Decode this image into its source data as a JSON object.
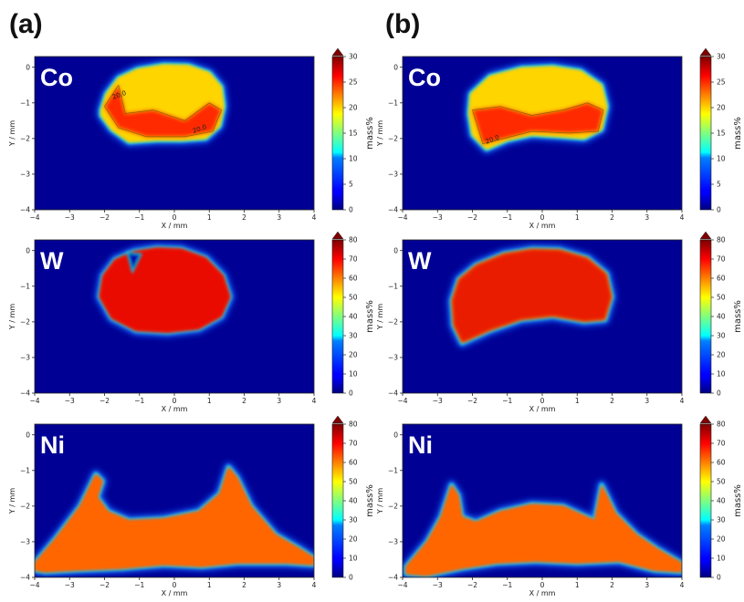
{
  "panels": [
    {
      "label": "(a)"
    },
    {
      "label": "(b)"
    }
  ],
  "chart_data": [
    {
      "type": "heatmap",
      "panel": "(a)",
      "element": "Co",
      "title": "",
      "xlabel": "X / mm",
      "ylabel": "Y / mm",
      "xlim": [
        -4,
        4
      ],
      "ylim": [
        -4,
        0.3
      ],
      "xticks": [
        "−4",
        "−3",
        "−2",
        "−1",
        "0",
        "1",
        "2",
        "3",
        "4"
      ],
      "yticks": [
        "0",
        "−1",
        "−2",
        "−3",
        "−4"
      ],
      "colorbar": {
        "label": "mass%",
        "range": [
          0,
          30
        ],
        "ticks": [
          "0",
          "5",
          "10",
          "15",
          "20",
          "25",
          "30"
        ]
      },
      "contour_labels": [
        "20.0",
        "20.0"
      ],
      "outline": [
        [
          -2.1,
          -1.2
        ],
        [
          -1.95,
          -0.75
        ],
        [
          -1.6,
          -0.3
        ],
        [
          -1.05,
          -0.05
        ],
        [
          -0.3,
          0.07
        ],
        [
          0.4,
          0.05
        ],
        [
          1.0,
          -0.15
        ],
        [
          1.35,
          -0.55
        ],
        [
          1.42,
          -1.1
        ],
        [
          1.3,
          -1.65
        ],
        [
          0.9,
          -2.0
        ],
        [
          0.2,
          -2.05
        ],
        [
          -0.5,
          -2.05
        ],
        [
          -1.3,
          -2.1
        ],
        [
          -1.8,
          -1.75
        ],
        [
          -2.1,
          -1.35
        ]
      ],
      "hot_region": [
        [
          -2.0,
          -1.1
        ],
        [
          -1.6,
          -0.5
        ],
        [
          -1.4,
          -1.3
        ],
        [
          -0.6,
          -1.2
        ],
        [
          0.3,
          -1.5
        ],
        [
          1.0,
          -1.0
        ],
        [
          1.35,
          -1.2
        ],
        [
          1.1,
          -1.8
        ],
        [
          0.3,
          -1.95
        ],
        [
          -0.8,
          -1.95
        ],
        [
          -1.6,
          -1.7
        ]
      ],
      "values": {
        "core": 20,
        "hot": 25,
        "background": 0
      }
    },
    {
      "type": "heatmap",
      "panel": "(b)",
      "element": "Co",
      "title": "",
      "xlabel": "X / mm",
      "ylabel": "Y / mm",
      "xlim": [
        -4,
        4
      ],
      "ylim": [
        -4,
        0.3
      ],
      "xticks": [
        "−4",
        "−3",
        "−2",
        "−1",
        "0",
        "1",
        "2",
        "3",
        "4"
      ],
      "yticks": [
        "0",
        "−1",
        "−2",
        "−3",
        "−4"
      ],
      "colorbar": {
        "label": "mass%",
        "range": [
          0,
          30
        ],
        "ticks": [
          "0",
          "5",
          "10",
          "15",
          "20",
          "25",
          "30"
        ]
      },
      "contour_labels": [
        "20.0"
      ],
      "outline": [
        [
          -2.1,
          -1.3
        ],
        [
          -2.05,
          -0.75
        ],
        [
          -1.5,
          -0.25
        ],
        [
          -0.6,
          -0.02
        ],
        [
          0.3,
          0.02
        ],
        [
          1.1,
          -0.1
        ],
        [
          1.7,
          -0.5
        ],
        [
          1.85,
          -1.1
        ],
        [
          1.7,
          -1.75
        ],
        [
          1.2,
          -2.0
        ],
        [
          0.5,
          -1.95
        ],
        [
          -0.3,
          -1.9
        ],
        [
          -1.0,
          -2.05
        ],
        [
          -1.6,
          -2.3
        ],
        [
          -2.0,
          -1.9
        ]
      ],
      "hot_region": [
        [
          -2.0,
          -1.2
        ],
        [
          -1.2,
          -1.1
        ],
        [
          -0.3,
          -1.35
        ],
        [
          0.6,
          -1.2
        ],
        [
          1.3,
          -1.0
        ],
        [
          1.75,
          -1.2
        ],
        [
          1.6,
          -1.8
        ],
        [
          0.8,
          -1.85
        ],
        [
          -0.3,
          -1.8
        ],
        [
          -1.1,
          -2.0
        ],
        [
          -1.7,
          -2.15
        ]
      ],
      "values": {
        "core": 20,
        "hot": 25,
        "background": 0
      }
    },
    {
      "type": "heatmap",
      "panel": "(a)",
      "element": "W",
      "title": "",
      "xlabel": "X / mm",
      "ylabel": "Y / mm",
      "xlim": [
        -4,
        4
      ],
      "ylim": [
        -4,
        0.3
      ],
      "xticks": [
        "−4",
        "−3",
        "−2",
        "−1",
        "0",
        "1",
        "2",
        "3",
        "4"
      ],
      "yticks": [
        "0",
        "−1",
        "−2",
        "−3",
        "−4"
      ],
      "colorbar": {
        "label": "mass%",
        "range": [
          0,
          80
        ],
        "ticks": [
          "0",
          "10",
          "20",
          "30",
          "40",
          "50",
          "60",
          "70",
          "80"
        ]
      },
      "outline": [
        [
          -2.15,
          -1.3
        ],
        [
          -2.05,
          -0.7
        ],
        [
          -1.7,
          -0.25
        ],
        [
          -1.15,
          -0.02
        ],
        [
          -0.5,
          0.08
        ],
        [
          0.2,
          0.05
        ],
        [
          0.9,
          -0.2
        ],
        [
          1.4,
          -0.7
        ],
        [
          1.6,
          -1.3
        ],
        [
          1.35,
          -1.85
        ],
        [
          0.7,
          -2.2
        ],
        [
          -0.2,
          -2.3
        ],
        [
          -1.1,
          -2.25
        ],
        [
          -1.8,
          -1.9
        ]
      ],
      "notch": [
        [
          -1.35,
          -0.05
        ],
        [
          -1.2,
          -0.6
        ],
        [
          -0.95,
          -0.1
        ]
      ],
      "values": {
        "core": 72,
        "edge": 65,
        "background": 0
      }
    },
    {
      "type": "heatmap",
      "panel": "(b)",
      "element": "W",
      "title": "",
      "xlabel": "X / mm",
      "ylabel": "Y / mm",
      "xlim": [
        -4,
        4
      ],
      "ylim": [
        -4,
        0.3
      ],
      "xticks": [
        "−4",
        "−3",
        "−2",
        "−1",
        "0",
        "1",
        "2",
        "3",
        "4"
      ],
      "yticks": [
        "0",
        "−1",
        "−2",
        "−3",
        "−4"
      ],
      "colorbar": {
        "label": "mass%",
        "range": [
          0,
          80
        ],
        "ticks": [
          "0",
          "10",
          "20",
          "30",
          "40",
          "50",
          "60",
          "70",
          "80"
        ]
      },
      "outline": [
        [
          -2.6,
          -1.4
        ],
        [
          -2.4,
          -0.8
        ],
        [
          -1.9,
          -0.4
        ],
        [
          -1.1,
          -0.08
        ],
        [
          -0.3,
          0.05
        ],
        [
          0.5,
          0.03
        ],
        [
          1.3,
          -0.2
        ],
        [
          1.85,
          -0.65
        ],
        [
          2.0,
          -1.3
        ],
        [
          1.8,
          -1.95
        ],
        [
          1.2,
          -2.0
        ],
        [
          0.3,
          -1.85
        ],
        [
          -0.6,
          -1.95
        ],
        [
          -1.5,
          -2.25
        ],
        [
          -2.3,
          -2.6
        ],
        [
          -2.55,
          -2.1
        ]
      ],
      "values": {
        "core": 72,
        "edge": 55,
        "background": 0
      }
    },
    {
      "type": "heatmap",
      "panel": "(a)",
      "element": "Ni",
      "title": "",
      "xlabel": "X / mm",
      "ylabel": "Y / mm",
      "xlim": [
        -4,
        4
      ],
      "ylim": [
        -4,
        0.3
      ],
      "xticks": [
        "−4",
        "−3",
        "−2",
        "−1",
        "0",
        "1",
        "2",
        "3",
        "4"
      ],
      "yticks": [
        "0",
        "−1",
        "−2",
        "−3",
        "−4"
      ],
      "colorbar": {
        "label": "mass%",
        "range": [
          0,
          80
        ],
        "ticks": [
          "0",
          "10",
          "20",
          "30",
          "40",
          "50",
          "60",
          "70",
          "80"
        ]
      },
      "outline": [
        [
          -4.0,
          -3.6
        ],
        [
          -3.4,
          -2.9
        ],
        [
          -2.7,
          -2.0
        ],
        [
          -2.25,
          -1.1
        ],
        [
          -2.05,
          -1.3
        ],
        [
          -2.2,
          -1.75
        ],
        [
          -1.9,
          -2.15
        ],
        [
          -1.3,
          -2.4
        ],
        [
          -0.3,
          -2.35
        ],
        [
          0.7,
          -2.15
        ],
        [
          1.3,
          -1.65
        ],
        [
          1.55,
          -0.9
        ],
        [
          1.8,
          -1.2
        ],
        [
          2.2,
          -2.0
        ],
        [
          2.9,
          -2.8
        ],
        [
          3.6,
          -3.2
        ],
        [
          4.0,
          -3.45
        ],
        [
          4.0,
          -3.65
        ],
        [
          3.2,
          -3.6
        ],
        [
          1.8,
          -3.6
        ],
        [
          0.8,
          -3.7
        ],
        [
          -0.3,
          -3.65
        ],
        [
          -1.5,
          -3.75
        ],
        [
          -2.8,
          -3.8
        ],
        [
          -3.7,
          -3.85
        ],
        [
          -4.0,
          -3.8
        ]
      ],
      "values": {
        "core": 62,
        "background": 0
      }
    },
    {
      "type": "heatmap",
      "panel": "(b)",
      "element": "Ni",
      "title": "",
      "xlabel": "X / mm",
      "ylabel": "Y / mm",
      "xlim": [
        -4,
        4
      ],
      "ylim": [
        -4,
        0.3
      ],
      "xticks": [
        "−4",
        "−3",
        "−2",
        "−1",
        "0",
        "1",
        "2",
        "3",
        "4"
      ],
      "yticks": [
        "0",
        "−1",
        "−2",
        "−3",
        "−4"
      ],
      "colorbar": {
        "label": "mass%",
        "range": [
          0,
          80
        ],
        "ticks": [
          "0",
          "10",
          "20",
          "30",
          "40",
          "50",
          "60",
          "70",
          "80"
        ]
      },
      "outline": [
        [
          -3.9,
          -3.7
        ],
        [
          -3.3,
          -3.0
        ],
        [
          -2.9,
          -2.3
        ],
        [
          -2.6,
          -1.4
        ],
        [
          -2.4,
          -1.7
        ],
        [
          -2.3,
          -2.3
        ],
        [
          -1.9,
          -2.45
        ],
        [
          -1.2,
          -2.15
        ],
        [
          -0.3,
          -1.95
        ],
        [
          0.6,
          -2.0
        ],
        [
          1.5,
          -2.4
        ],
        [
          1.7,
          -1.4
        ],
        [
          1.8,
          -1.6
        ],
        [
          2.1,
          -2.2
        ],
        [
          2.7,
          -2.8
        ],
        [
          3.3,
          -3.2
        ],
        [
          4.0,
          -3.6
        ],
        [
          4.0,
          -3.85
        ],
        [
          3.2,
          -3.8
        ],
        [
          2.2,
          -3.55
        ],
        [
          1.0,
          -3.6
        ],
        [
          -0.2,
          -3.55
        ],
        [
          -1.3,
          -3.6
        ],
        [
          -2.3,
          -3.75
        ],
        [
          -3.3,
          -3.95
        ],
        [
          -3.9,
          -3.9
        ]
      ],
      "values": {
        "core": 62,
        "background": 0
      }
    }
  ]
}
